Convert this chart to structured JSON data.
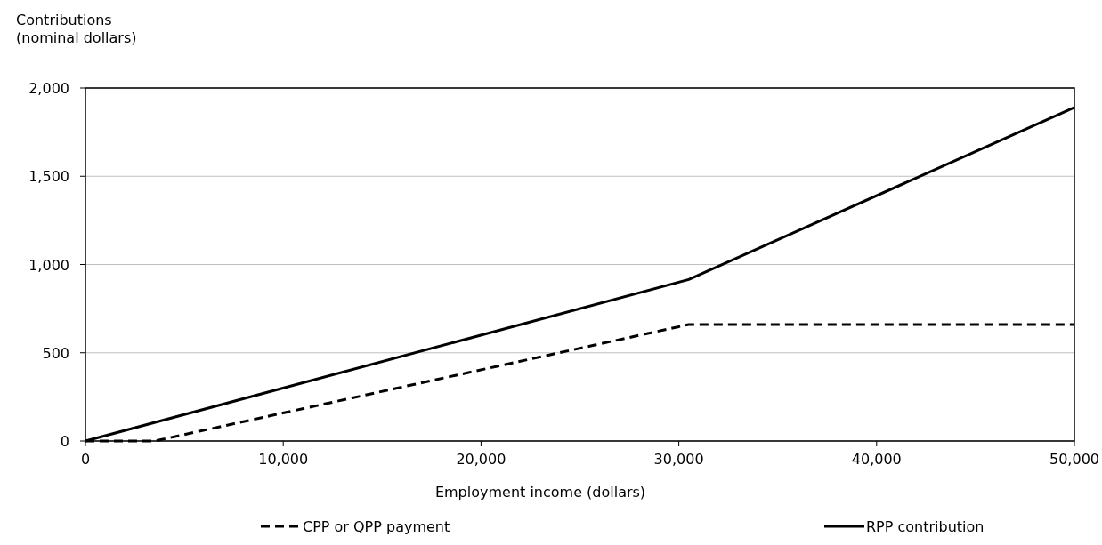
{
  "chart_data": {
    "type": "line",
    "ylabel": "Contributions\n(nominal dollars)",
    "xlabel": "Employment income (dollars)",
    "xlim": [
      0,
      50000
    ],
    "xticks": [
      {
        "value": 0,
        "label": "0"
      },
      {
        "value": 10000,
        "label": "10,000"
      },
      {
        "value": 20000,
        "label": "20,000"
      },
      {
        "value": 30000,
        "label": "30,000"
      },
      {
        "value": 40000,
        "label": "40,000"
      },
      {
        "value": 50000,
        "label": "50,000"
      }
    ],
    "ylim": [
      0,
      2000
    ],
    "yticks": [
      {
        "value": 0,
        "label": "0"
      },
      {
        "value": 500,
        "label": "500"
      },
      {
        "value": 1000,
        "label": "1,000"
      },
      {
        "value": 1500,
        "label": "1,500"
      },
      {
        "value": 2000,
        "label": "2,000"
      }
    ],
    "grid": "y",
    "legend": "bottom",
    "series": [
      {
        "name": "CPP or QPP payment",
        "color": "#000000",
        "line_style": "dashed",
        "x": [
          0,
          3500,
          30500,
          50000
        ],
        "values": [
          0,
          0,
          660,
          660
        ]
      },
      {
        "name": "RPP contribution",
        "color": "#000000",
        "line_style": "solid",
        "x": [
          0,
          30500,
          50000
        ],
        "values": [
          0,
          915,
          1890
        ]
      }
    ]
  }
}
